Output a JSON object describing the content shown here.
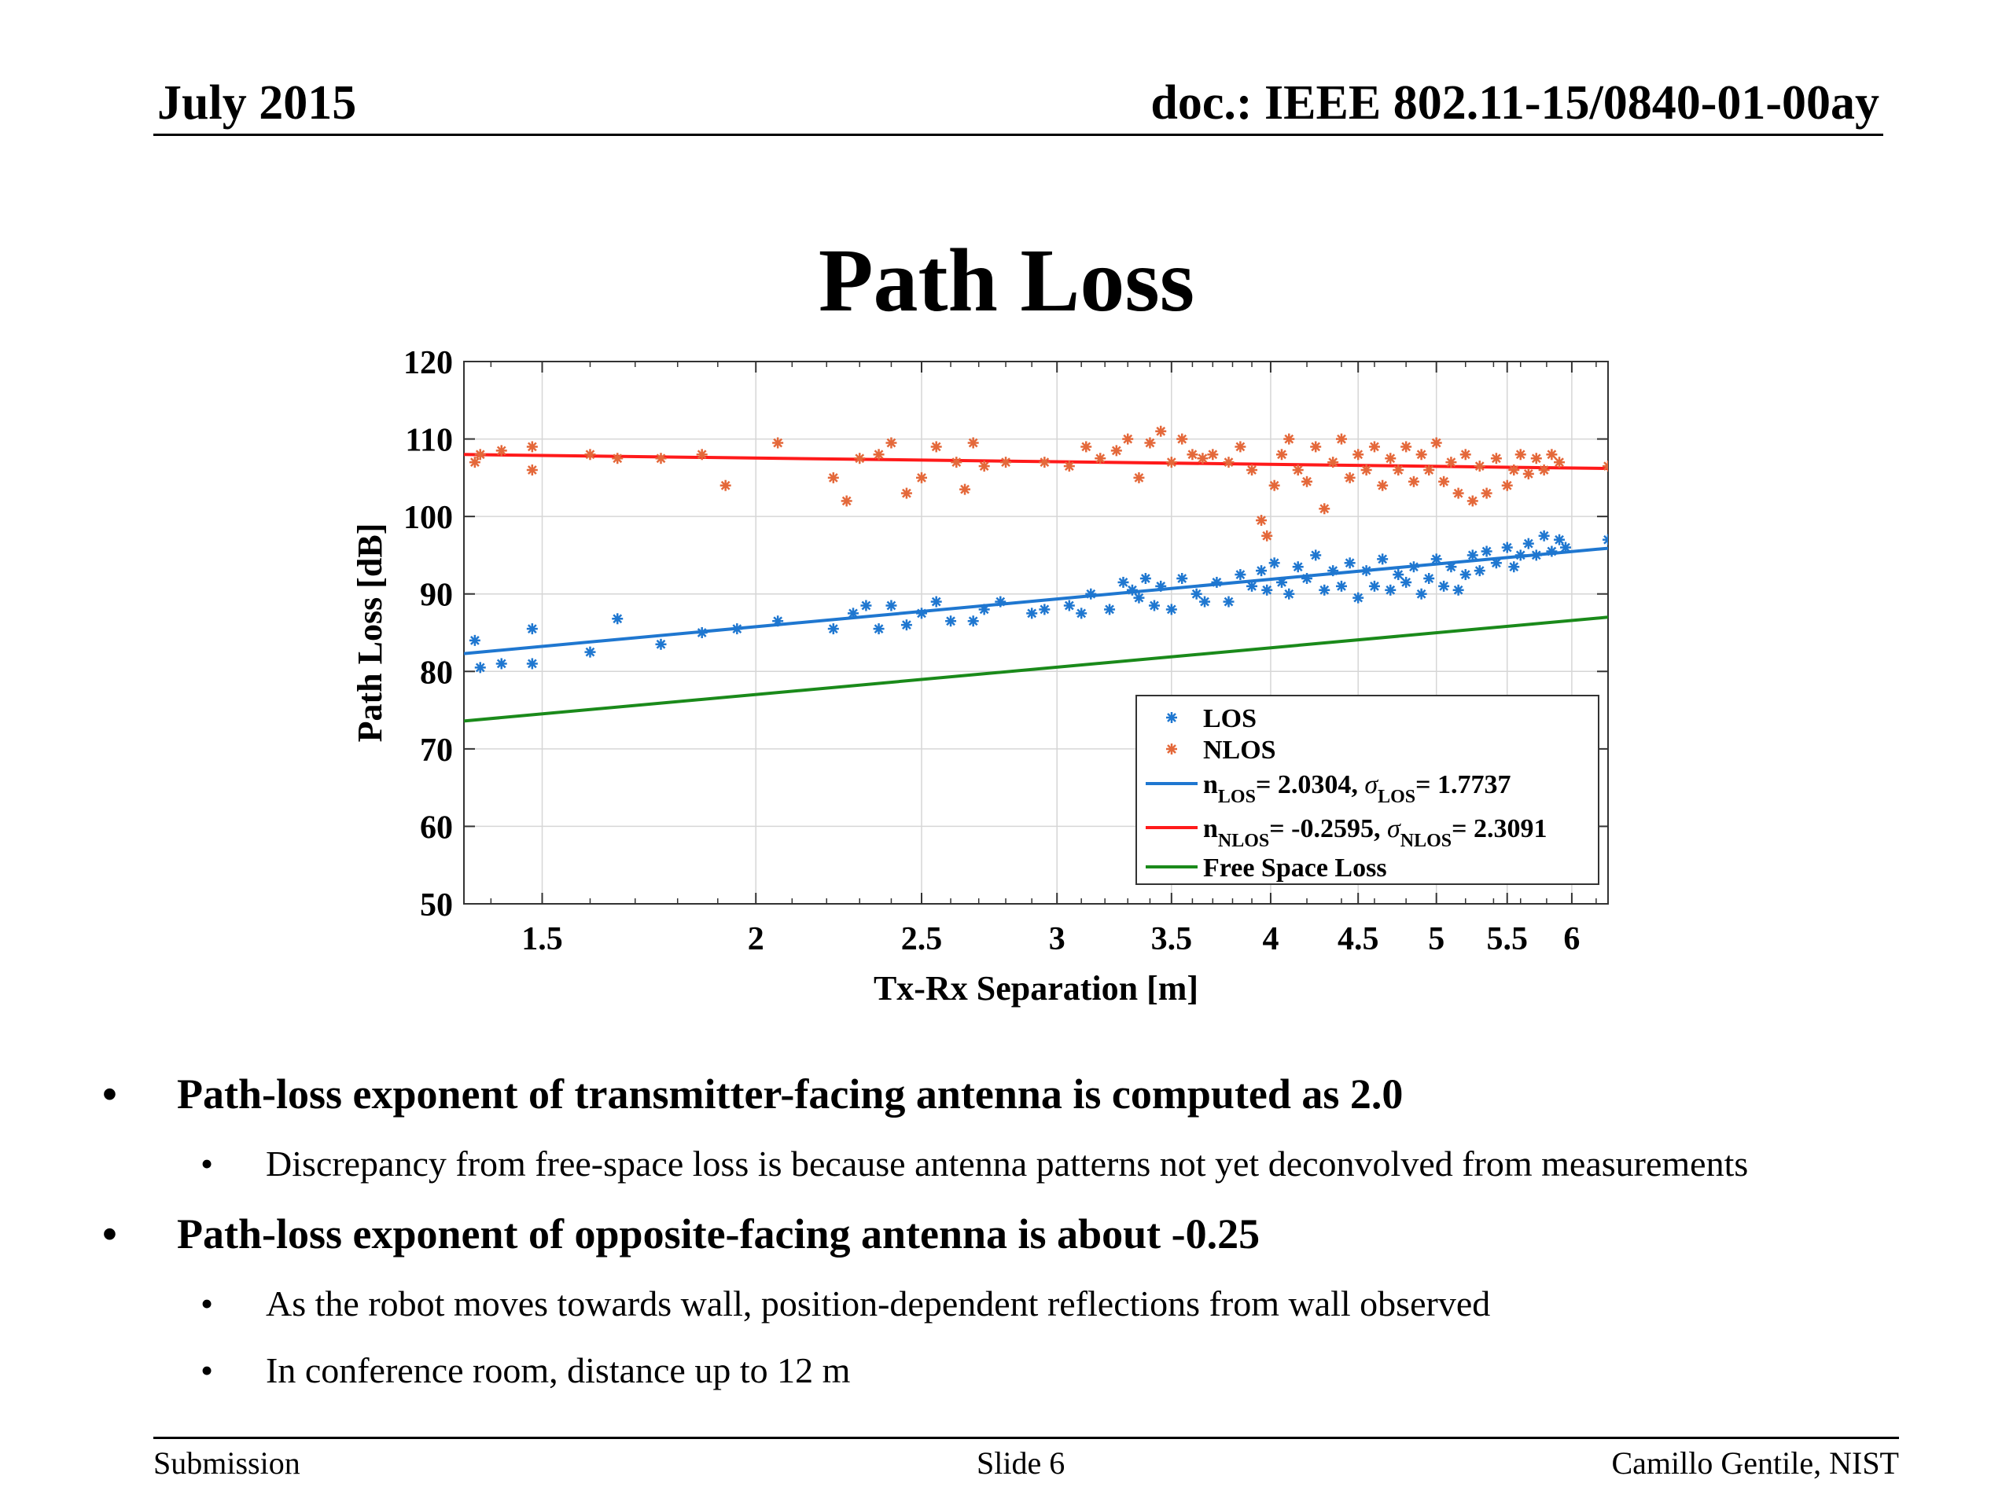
{
  "header": {
    "date": "July 2015",
    "doc_id": "doc.: IEEE 802.11-15/0840-01-00ay"
  },
  "slide": {
    "title": "Path Loss"
  },
  "bullets": [
    {
      "text": "Path-loss exponent of transmitter-facing antenna is computed as 2.0",
      "subs": [
        "Discrepancy from free-space loss is because antenna patterns not yet deconvolved from measurements"
      ]
    },
    {
      "text": "Path-loss exponent of opposite-facing antenna is about -0.25",
      "subs": [
        "As the robot moves towards wall, position-dependent reflections from wall observed",
        "In conference room, distance up to 12 m"
      ]
    }
  ],
  "footer": {
    "left": "Submission",
    "center": "Slide 6",
    "right": "Camillo Gentile, NIST"
  },
  "chart_data": {
    "type": "scatter",
    "title": "",
    "xlabel": "Tx-Rx Separation [m]",
    "ylabel": "Path Loss [dB]",
    "xscale": "log",
    "xlim": [
      1.35,
      6.3
    ],
    "ylim": [
      50,
      120
    ],
    "xticks": [
      1.5,
      2,
      2.5,
      3,
      3.5,
      4,
      4.5,
      5,
      5.5,
      6
    ],
    "xtick_labels": [
      "1.5",
      "2",
      "2.5",
      "3",
      "3.5",
      "4",
      "4.5",
      "5",
      "5.5",
      "6"
    ],
    "yticks": [
      50,
      60,
      70,
      80,
      90,
      100,
      110,
      120
    ],
    "ytick_labels": [
      "50",
      "60",
      "70",
      "80",
      "90",
      "100",
      "110",
      "120"
    ],
    "grid": true,
    "legend_position": "bottom-right",
    "series": [
      {
        "name": "LOS",
        "kind": "scatter",
        "marker": "*",
        "color": "#1f77d0",
        "points": [
          [
            1.37,
            84
          ],
          [
            1.38,
            80.5
          ],
          [
            1.42,
            81
          ],
          [
            1.48,
            85.5
          ],
          [
            1.48,
            81
          ],
          [
            1.6,
            82.5
          ],
          [
            1.66,
            86.8
          ],
          [
            1.76,
            83.5
          ],
          [
            1.86,
            85
          ],
          [
            1.95,
            85.5
          ],
          [
            2.06,
            86.5
          ],
          [
            2.22,
            85.5
          ],
          [
            2.28,
            87.5
          ],
          [
            2.32,
            88.5
          ],
          [
            2.36,
            85.5
          ],
          [
            2.4,
            88.5
          ],
          [
            2.45,
            86
          ],
          [
            2.5,
            87.5
          ],
          [
            2.55,
            89
          ],
          [
            2.6,
            86.5
          ],
          [
            2.68,
            86.5
          ],
          [
            2.72,
            88
          ],
          [
            2.78,
            89
          ],
          [
            2.9,
            87.5
          ],
          [
            2.95,
            88
          ],
          [
            3.05,
            88.5
          ],
          [
            3.1,
            87.5
          ],
          [
            3.14,
            90
          ],
          [
            3.22,
            88
          ],
          [
            3.28,
            91.5
          ],
          [
            3.32,
            90.5
          ],
          [
            3.35,
            89.5
          ],
          [
            3.38,
            92
          ],
          [
            3.42,
            88.5
          ],
          [
            3.45,
            91
          ],
          [
            3.5,
            88
          ],
          [
            3.55,
            92
          ],
          [
            3.62,
            90
          ],
          [
            3.66,
            89
          ],
          [
            3.72,
            91.5
          ],
          [
            3.78,
            89
          ],
          [
            3.84,
            92.5
          ],
          [
            3.9,
            91
          ],
          [
            3.95,
            93
          ],
          [
            3.98,
            90.5
          ],
          [
            4.02,
            94
          ],
          [
            4.06,
            91.5
          ],
          [
            4.1,
            90
          ],
          [
            4.15,
            93.5
          ],
          [
            4.2,
            92
          ],
          [
            4.25,
            95
          ],
          [
            4.3,
            90.5
          ],
          [
            4.35,
            93
          ],
          [
            4.4,
            91
          ],
          [
            4.45,
            94
          ],
          [
            4.5,
            89.5
          ],
          [
            4.55,
            93
          ],
          [
            4.6,
            91
          ],
          [
            4.65,
            94.5
          ],
          [
            4.7,
            90.5
          ],
          [
            4.75,
            92.5
          ],
          [
            4.8,
            91.5
          ],
          [
            4.85,
            93.5
          ],
          [
            4.9,
            90
          ],
          [
            4.95,
            92
          ],
          [
            5.0,
            94.5
          ],
          [
            5.05,
            91
          ],
          [
            5.1,
            93.5
          ],
          [
            5.15,
            90.5
          ],
          [
            5.2,
            92.5
          ],
          [
            5.25,
            95
          ],
          [
            5.3,
            93
          ],
          [
            5.35,
            95.5
          ],
          [
            5.42,
            94
          ],
          [
            5.5,
            96
          ],
          [
            5.55,
            93.5
          ],
          [
            5.6,
            95
          ],
          [
            5.66,
            96.5
          ],
          [
            5.72,
            95
          ],
          [
            5.78,
            97.5
          ],
          [
            5.84,
            95.5
          ],
          [
            5.9,
            97
          ],
          [
            5.95,
            96
          ],
          [
            6.3,
            97
          ]
        ]
      },
      {
        "name": "NLOS",
        "kind": "scatter",
        "marker": "*",
        "color": "#e4683a",
        "points": [
          [
            1.37,
            107
          ],
          [
            1.38,
            108
          ],
          [
            1.42,
            108.5
          ],
          [
            1.48,
            109
          ],
          [
            1.48,
            106
          ],
          [
            1.6,
            108
          ],
          [
            1.66,
            107.5
          ],
          [
            1.76,
            107.5
          ],
          [
            1.86,
            108
          ],
          [
            1.92,
            104
          ],
          [
            2.06,
            109.5
          ],
          [
            2.22,
            105
          ],
          [
            2.26,
            102
          ],
          [
            2.3,
            107.5
          ],
          [
            2.36,
            108
          ],
          [
            2.4,
            109.5
          ],
          [
            2.45,
            103
          ],
          [
            2.5,
            105
          ],
          [
            2.55,
            109
          ],
          [
            2.62,
            107
          ],
          [
            2.65,
            103.5
          ],
          [
            2.68,
            109.5
          ],
          [
            2.72,
            106.5
          ],
          [
            2.8,
            107
          ],
          [
            2.95,
            107
          ],
          [
            3.05,
            106.5
          ],
          [
            3.12,
            109
          ],
          [
            3.18,
            107.5
          ],
          [
            3.25,
            108.5
          ],
          [
            3.3,
            110
          ],
          [
            3.35,
            105
          ],
          [
            3.4,
            109.5
          ],
          [
            3.45,
            111
          ],
          [
            3.5,
            107
          ],
          [
            3.55,
            110
          ],
          [
            3.6,
            108
          ],
          [
            3.65,
            107.5
          ],
          [
            3.7,
            108
          ],
          [
            3.78,
            107
          ],
          [
            3.84,
            109
          ],
          [
            3.9,
            106
          ],
          [
            3.95,
            99.5
          ],
          [
            3.98,
            97.5
          ],
          [
            4.02,
            104
          ],
          [
            4.06,
            108
          ],
          [
            4.1,
            110
          ],
          [
            4.15,
            106
          ],
          [
            4.2,
            104.5
          ],
          [
            4.25,
            109
          ],
          [
            4.3,
            101
          ],
          [
            4.35,
            107
          ],
          [
            4.4,
            110
          ],
          [
            4.45,
            105
          ],
          [
            4.5,
            108
          ],
          [
            4.55,
            106
          ],
          [
            4.6,
            109
          ],
          [
            4.65,
            104
          ],
          [
            4.7,
            107.5
          ],
          [
            4.75,
            106
          ],
          [
            4.8,
            109
          ],
          [
            4.85,
            104.5
          ],
          [
            4.9,
            108
          ],
          [
            4.95,
            106
          ],
          [
            5.0,
            109.5
          ],
          [
            5.05,
            104.5
          ],
          [
            5.1,
            107
          ],
          [
            5.15,
            103
          ],
          [
            5.2,
            108
          ],
          [
            5.25,
            102
          ],
          [
            5.3,
            106.5
          ],
          [
            5.35,
            103
          ],
          [
            5.42,
            107.5
          ],
          [
            5.5,
            104
          ],
          [
            5.55,
            106
          ],
          [
            5.6,
            108
          ],
          [
            5.66,
            105.5
          ],
          [
            5.72,
            107.5
          ],
          [
            5.78,
            106
          ],
          [
            5.84,
            108
          ],
          [
            5.9,
            107
          ],
          [
            6.3,
            106.5
          ]
        ]
      },
      {
        "name": "n_LOS= 2.0304, σ_LOS= 1.7737",
        "kind": "line",
        "color": "#1f77d0",
        "legend_main": "n",
        "legend_sub1": "LOS",
        "legend_mid": "= 2.0304, ",
        "legend_sigma": "σ",
        "legend_sub2": "LOS",
        "legend_tail": "= 1.7737",
        "points": [
          [
            1.35,
            82.3
          ],
          [
            6.3,
            95.9
          ]
        ]
      },
      {
        "name": "n_NLOS= -0.2595, σ_NLOS= 2.3091",
        "kind": "line",
        "color": "#ff1a1a",
        "legend_main": "n",
        "legend_sub1": "NLOS",
        "legend_mid": "= -0.2595, ",
        "legend_sigma": "σ",
        "legend_sub2": "NLOS",
        "legend_tail": "= 2.3091",
        "points": [
          [
            1.35,
            108
          ],
          [
            6.3,
            106.2
          ]
        ]
      },
      {
        "name": "Free Space Loss",
        "kind": "line",
        "color": "#1a8a1a",
        "points": [
          [
            1.35,
            73.6
          ],
          [
            6.3,
            87
          ]
        ]
      }
    ]
  }
}
